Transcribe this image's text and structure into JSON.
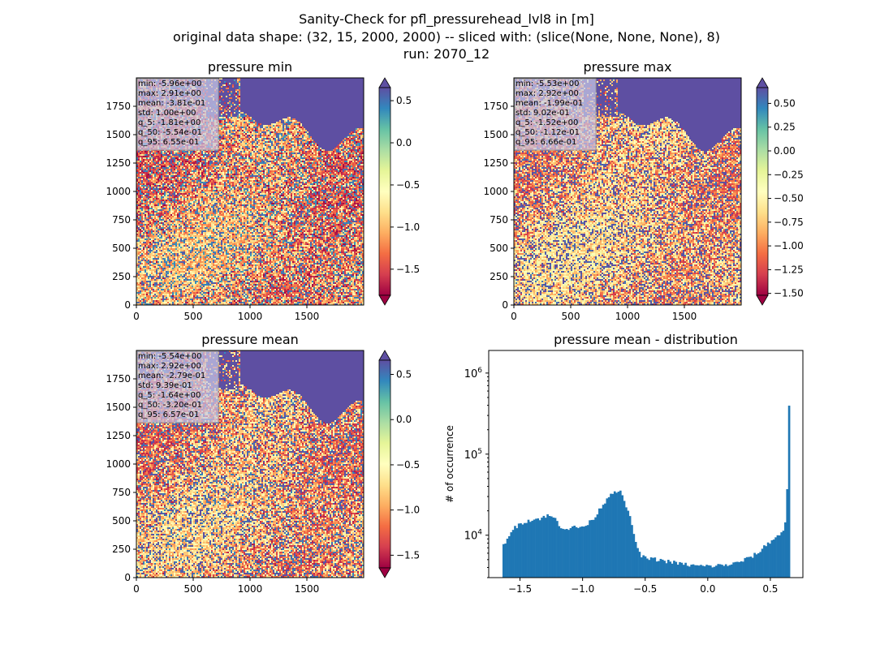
{
  "figure": {
    "title_lines": [
      "Sanity-Check for pfl_pressurehead_lvl8 in [m]",
      "original data shape: (32, 15, 2000, 2000) -- sliced with: (slice(None, None, None), 8)",
      "run: 2070_12"
    ]
  },
  "colors": {
    "histogram_bar": "#1f77b4",
    "stats_box_bg": "#c8c8e6",
    "colormap": "Spectral",
    "colormap_stops": [
      "#9e0142",
      "#d53e4f",
      "#f46d43",
      "#fdae61",
      "#fee08b",
      "#ffffbf",
      "#e6f598",
      "#abdda4",
      "#66c2a5",
      "#3288bd",
      "#5e4fa2"
    ],
    "sea": "#5e4fa2"
  },
  "chart_data": [
    {
      "type": "heatmap",
      "id": "min",
      "title": "pressure min",
      "x_ticks": [
        "0",
        "500",
        "1000",
        "1500"
      ],
      "y_ticks": [
        "0",
        "250",
        "500",
        "750",
        "1000",
        "1250",
        "1500",
        "1750"
      ],
      "xlim": [
        0,
        2000
      ],
      "ylim": [
        0,
        2000
      ],
      "colorbar": {
        "range": [
          -1.81,
          0.655
        ],
        "extend": "both",
        "ticks": [
          0.5,
          0.0,
          -0.5,
          -1.0,
          -1.5
        ],
        "tick_labels": [
          "0.5",
          "0.0",
          "−0.5",
          "−1.0",
          "−1.5"
        ]
      },
      "stats": [
        "min: -5.96e+00",
        "max: 2.91e+00",
        "mean: -3.81e-01",
        "std: 1.00e+00",
        "q_5: -1.81e+00",
        "q_50: -5.54e-01",
        "q_95: 6.55e-01"
      ]
    },
    {
      "type": "heatmap",
      "id": "max",
      "title": "pressure max",
      "x_ticks": [
        "0",
        "500",
        "1000",
        "1500"
      ],
      "y_ticks": [
        "0",
        "250",
        "500",
        "750",
        "1000",
        "1250",
        "1500",
        "1750"
      ],
      "xlim": [
        0,
        2000
      ],
      "ylim": [
        0,
        2000
      ],
      "colorbar": {
        "range": [
          -1.52,
          0.666
        ],
        "extend": "both",
        "ticks": [
          0.5,
          0.25,
          0.0,
          -0.25,
          -0.5,
          -0.75,
          -1.0,
          -1.25,
          -1.5
        ],
        "tick_labels": [
          "0.50",
          "0.25",
          "0.00",
          "−0.25",
          "−0.50",
          "−0.75",
          "−1.00",
          "−1.25",
          "−1.50"
        ]
      },
      "stats": [
        "min: -5.53e+00",
        "max: 2.92e+00",
        "mean: -1.99e-01",
        "std: 9.02e-01",
        "q_5: -1.52e+00",
        "q_50: -1.12e-01",
        "q_95: 6.66e-01"
      ]
    },
    {
      "type": "heatmap",
      "id": "mean",
      "title": "pressure mean",
      "x_ticks": [
        "0",
        "500",
        "1000",
        "1500"
      ],
      "y_ticks": [
        "0",
        "250",
        "500",
        "750",
        "1000",
        "1250",
        "1500",
        "1750"
      ],
      "xlim": [
        0,
        2000
      ],
      "ylim": [
        0,
        2000
      ],
      "colorbar": {
        "range": [
          -1.64,
          0.657
        ],
        "extend": "both",
        "ticks": [
          0.5,
          0.0,
          -0.5,
          -1.0,
          -1.5
        ],
        "tick_labels": [
          "0.5",
          "0.0",
          "−0.5",
          "−1.0",
          "−1.5"
        ]
      },
      "stats": [
        "min: -5.54e+00",
        "max: 2.92e+00",
        "mean: -2.79e-01",
        "std: 9.39e-01",
        "q_5: -1.64e+00",
        "q_50: -3.20e-01",
        "q_95: 6.57e-01"
      ]
    },
    {
      "type": "bar",
      "id": "hist",
      "title": "pressure mean - distribution",
      "ylabel": "# of occurrence",
      "xlabel": "",
      "x_ticks": [
        -1.5,
        -1.0,
        -0.5,
        0.0,
        0.5
      ],
      "x_tick_labels": [
        "−1.5",
        "−1.0",
        "−0.5",
        "0.0",
        "0.5"
      ],
      "xlim": [
        -1.75,
        0.76
      ],
      "ylim": [
        3000,
        1900000
      ],
      "y_scale": "log",
      "y_ticks": [
        10000,
        100000,
        1000000
      ],
      "y_tick_labels": [
        "10^4",
        "10^5",
        "10^6"
      ],
      "bins": {
        "start": -1.64,
        "end": 0.657,
        "count": 150
      },
      "curve": [
        [
          -1.64,
          7000
        ],
        [
          -1.6,
          9500
        ],
        [
          -1.55,
          12000
        ],
        [
          -1.5,
          14000
        ],
        [
          -1.45,
          15000
        ],
        [
          -1.4,
          15500
        ],
        [
          -1.35,
          16000
        ],
        [
          -1.3,
          17000
        ],
        [
          -1.27,
          17500
        ],
        [
          -1.22,
          16000
        ],
        [
          -1.18,
          13000
        ],
        [
          -1.13,
          12000
        ],
        [
          -1.08,
          12500
        ],
        [
          -1.03,
          12500
        ],
        [
          -0.98,
          13000
        ],
        [
          -0.93,
          15000
        ],
        [
          -0.88,
          19000
        ],
        [
          -0.83,
          25000
        ],
        [
          -0.78,
          32000
        ],
        [
          -0.74,
          36000
        ],
        [
          -0.7,
          34000
        ],
        [
          -0.66,
          25000
        ],
        [
          -0.62,
          16000
        ],
        [
          -0.58,
          9000
        ],
        [
          -0.55,
          6000
        ],
        [
          -0.5,
          5200
        ],
        [
          -0.4,
          5000
        ],
        [
          -0.3,
          4700
        ],
        [
          -0.2,
          4400
        ],
        [
          -0.1,
          4200
        ],
        [
          0.0,
          4150
        ],
        [
          0.1,
          4250
        ],
        [
          0.2,
          4400
        ],
        [
          0.3,
          5000
        ],
        [
          0.4,
          6000
        ],
        [
          0.48,
          8000
        ],
        [
          0.55,
          9500
        ],
        [
          0.6,
          11000
        ],
        [
          0.62,
          15000
        ],
        [
          0.635,
          40000
        ],
        [
          0.645,
          1000000
        ],
        [
          0.652,
          230000
        ],
        [
          0.657,
          230000
        ]
      ]
    }
  ]
}
